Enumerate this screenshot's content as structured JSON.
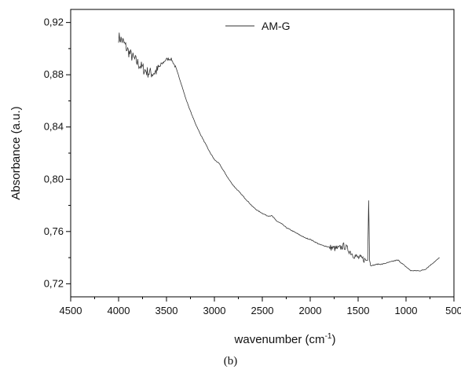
{
  "chart_data": {
    "type": "line",
    "xlabel": "wavenumber (cm",
    "xlabel_sup": "-1",
    "xlabel_tail": ")",
    "ylabel": "Absorbance (a.u.)",
    "xlim": [
      4500,
      500
    ],
    "ylim": [
      0.71,
      0.93
    ],
    "x_ticks": [
      4500,
      4000,
      3500,
      3000,
      2500,
      2000,
      1500,
      1000,
      500
    ],
    "x_tick_labels": [
      "4500",
      "4000",
      "3500",
      "3000",
      "2500",
      "2000",
      "1500",
      "1000",
      "500"
    ],
    "y_ticks": [
      0.72,
      0.76,
      0.8,
      0.84,
      0.88,
      0.92
    ],
    "y_tick_labels": [
      "0,72",
      "0,76",
      "0,80",
      "0,84",
      "0,88",
      "0,92"
    ],
    "legend_position": "top-center",
    "series": [
      {
        "name": "AM-G",
        "color": "#333333",
        "x": [
          4000,
          3950,
          3900,
          3850,
          3800,
          3750,
          3700,
          3650,
          3600,
          3550,
          3500,
          3450,
          3400,
          3350,
          3300,
          3250,
          3200,
          3150,
          3100,
          3050,
          3000,
          2950,
          2900,
          2850,
          2800,
          2750,
          2700,
          2650,
          2600,
          2550,
          2500,
          2450,
          2400,
          2350,
          2300,
          2250,
          2200,
          2150,
          2100,
          2050,
          2000,
          1950,
          1900,
          1850,
          1800,
          1750,
          1700,
          1650,
          1600,
          1550,
          1500,
          1450,
          1420,
          1400,
          1390,
          1385,
          1380,
          1370,
          1350,
          1300,
          1250,
          1200,
          1150,
          1100,
          1080,
          1050,
          1000,
          950,
          900,
          850,
          800,
          750,
          700,
          650
        ],
        "y": [
          0.909,
          0.905,
          0.898,
          0.893,
          0.889,
          0.885,
          0.882,
          0.881,
          0.883,
          0.888,
          0.892,
          0.892,
          0.885,
          0.874,
          0.862,
          0.852,
          0.843,
          0.835,
          0.828,
          0.821,
          0.815,
          0.812,
          0.806,
          0.8,
          0.795,
          0.791,
          0.787,
          0.783,
          0.779,
          0.776,
          0.774,
          0.772,
          0.772,
          0.768,
          0.766,
          0.763,
          0.761,
          0.759,
          0.757,
          0.755,
          0.754,
          0.752,
          0.75,
          0.749,
          0.748,
          0.747,
          0.747,
          0.749,
          0.746,
          0.742,
          0.74,
          0.739,
          0.738,
          0.738,
          0.784,
          0.762,
          0.738,
          0.734,
          0.734,
          0.735,
          0.735,
          0.736,
          0.737,
          0.738,
          0.738,
          0.736,
          0.733,
          0.73,
          0.73,
          0.73,
          0.731,
          0.734,
          0.737,
          0.74
        ]
      }
    ]
  },
  "caption": "(b)"
}
